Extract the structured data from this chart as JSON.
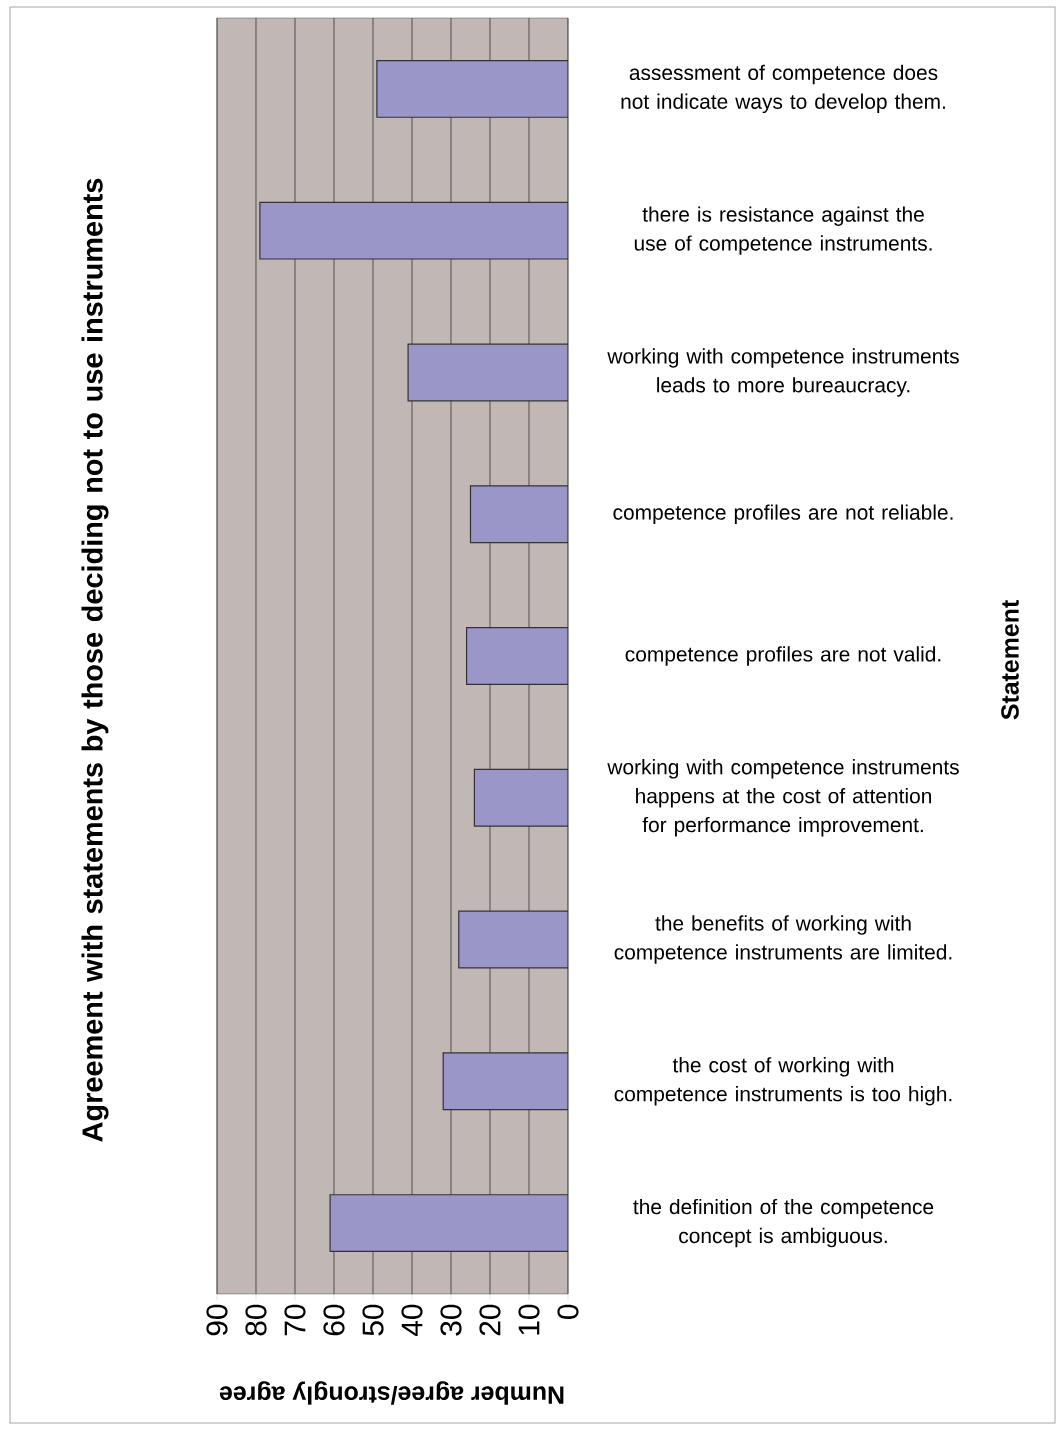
{
  "chart_data": {
    "type": "bar",
    "orientation": "horizontal",
    "title": "Agreement with statements by those deciding not to use instruments",
    "xlabel": "Number agree/strongly agree",
    "ylabel": "Statement",
    "categories": [
      "assessment of competence does not indicate ways to develop them.",
      "there is resistance against the use of competence instruments.",
      "working with competence instruments leads to more bureaucracy.",
      "competence profiles are not reliable.",
      "competence profiles are not valid.",
      "working with competence instruments happens at the cost of attention for performance improvement.",
      "the benefits of working with competence instruments are limited.",
      "the cost of working with competence instruments is too high.",
      "the definition of the competence concept is ambiguous."
    ],
    "values": [
      49,
      79,
      41,
      25,
      26,
      24,
      28,
      32,
      61
    ],
    "color": "#9b96c8",
    "xlim": [
      90,
      0
    ],
    "xticks": [
      90,
      80,
      70,
      60,
      50,
      40,
      30,
      20,
      10,
      0
    ],
    "grid": "x"
  }
}
